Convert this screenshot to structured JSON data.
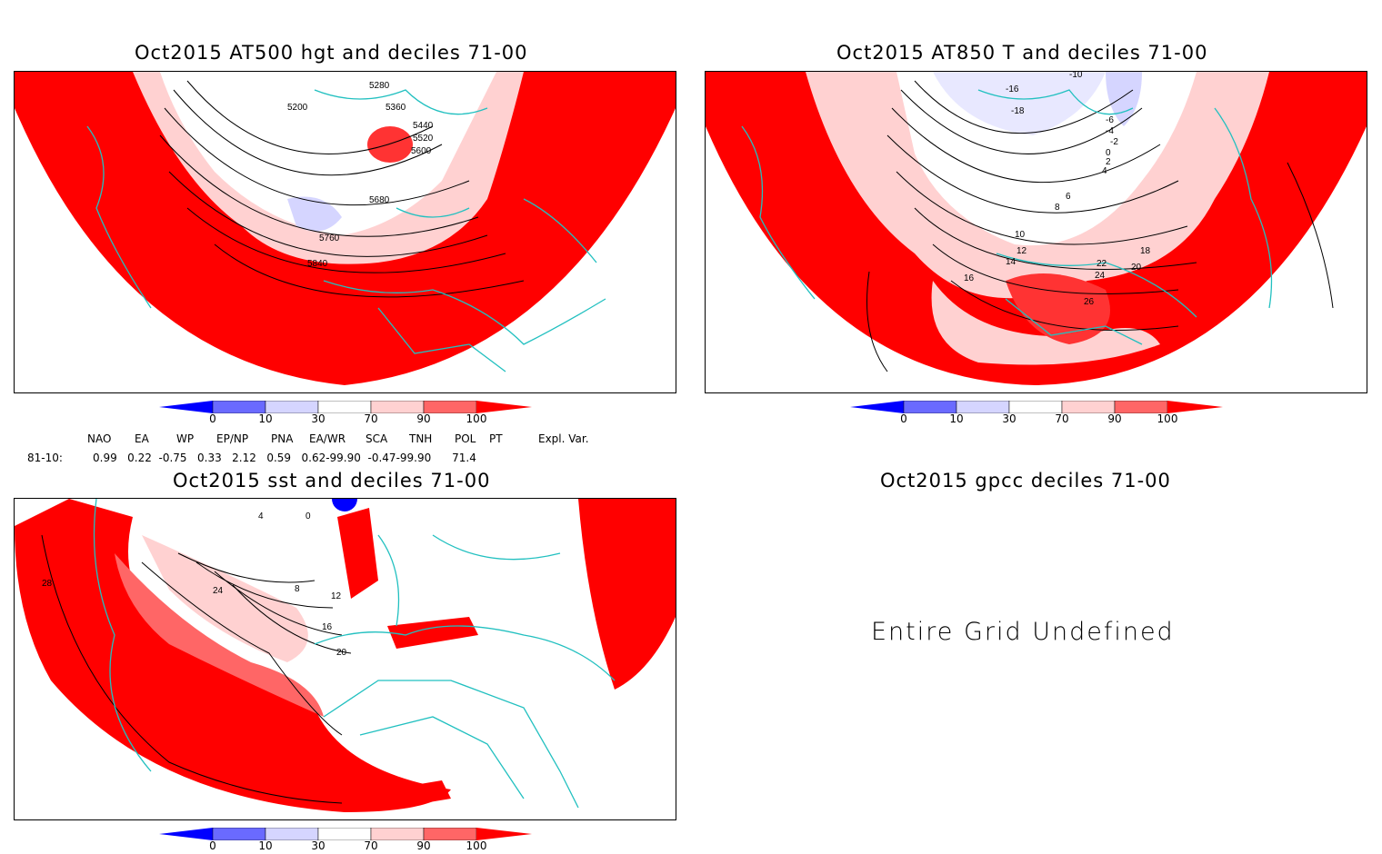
{
  "panels": {
    "hgt": {
      "title": "Oct2015 AT500 hgt and deciles 71-00",
      "contour_labels": [
        "5200",
        "5280",
        "5360",
        "5440",
        "5520",
        "5600",
        "5680",
        "5760",
        "5840"
      ]
    },
    "t850": {
      "title": "Oct2015 AT850 T and deciles 71-00",
      "contour_labels": [
        "-16",
        "-10",
        "-18",
        "-6",
        "-4",
        "-2",
        "0",
        "2",
        "4",
        "6",
        "8",
        "10",
        "12",
        "14",
        "16",
        "18",
        "20",
        "22",
        "24",
        "26"
      ]
    },
    "sst": {
      "title": "Oct2015 sst and deciles 71-00",
      "contour_labels": [
        "28",
        "24",
        "20",
        "16",
        "12",
        "8",
        "4",
        "0"
      ]
    },
    "gpcc": {
      "title": "Oct2015 gpcc deciles 71-00",
      "message": "Entire Grid Undefined"
    }
  },
  "colorbar": {
    "labels": [
      "0",
      "10",
      "30",
      "70",
      "90",
      "100"
    ],
    "colors": [
      "#0000ff",
      "#6a6aff",
      "#d5d5ff",
      "#ffffff",
      "#ffd1d1",
      "#ff6666",
      "#ff0000"
    ]
  },
  "indices": {
    "period": "81-10:",
    "headers": [
      "NAO",
      "EA",
      "WP",
      "EP/NP",
      "PNA",
      "EA/WR",
      "SCA",
      "TNH",
      "POL",
      "PT",
      "Expl. Var."
    ],
    "values_line": "0.99   0.22  -0.75   0.33   2.12   0.59   0.62-99.90  -0.47-99.90      71.4"
  },
  "colors": {
    "anomaly_high": "#ff0000",
    "coast": "#22c0c0",
    "contour": "#000000"
  }
}
